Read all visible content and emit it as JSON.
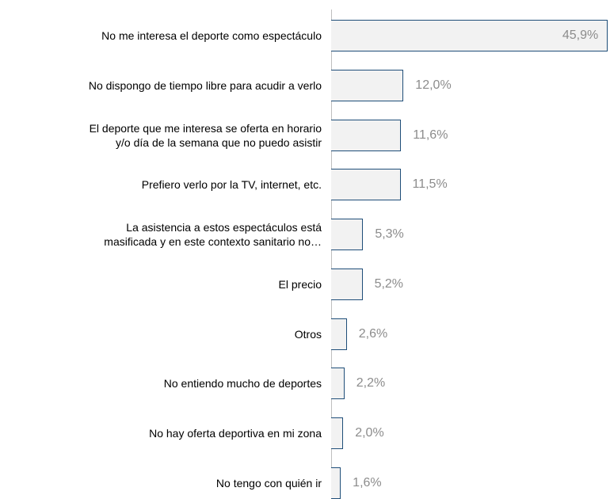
{
  "chart_data": {
    "type": "bar",
    "orientation": "horizontal",
    "categories": [
      "No me interesa el deporte como espectáculo",
      "No dispongo de tiempo libre para acudir a verlo",
      "El deporte que me interesa se oferta en horario\ny/o día de la semana que no puedo asistir",
      "Prefiero verlo por la TV, internet, etc.",
      "La asistencia a estos espectáculos está\nmasificada y en este contexto sanitario no…",
      "El precio",
      "Otros",
      "No entiendo mucho de deportes",
      "No hay oferta deportiva en mi zona",
      "No tengo con quién ir"
    ],
    "values": [
      45.9,
      12.0,
      11.6,
      11.5,
      5.3,
      5.2,
      2.6,
      2.2,
      2.0,
      1.6
    ],
    "value_labels": [
      "45,9%",
      "12,0%",
      "11,6%",
      "11,5%",
      "5,3%",
      "5,2%",
      "2,6%",
      "2,2%",
      "2,0%",
      "1,6%"
    ],
    "color": "#f2f2f2",
    "xlim": [
      0,
      46
    ]
  }
}
